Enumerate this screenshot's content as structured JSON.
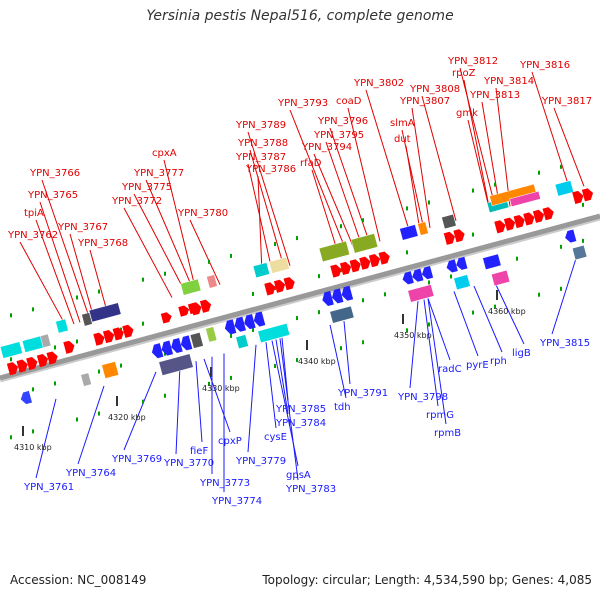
{
  "title": "Yersinia pestis Nepal516, complete genome",
  "footer": {
    "accession": "Accession: NC_008149",
    "topology": "Topology: circular; Length: 4,534,590 bp; Genes: 4,085"
  },
  "colors": {
    "forward_label": "#e00000",
    "reverse_label": "#1a1aff",
    "backbone": "#999999",
    "tick": "#00a000"
  },
  "kbp_labels": [
    "4310 kbp",
    "4320 kbp",
    "4330 kbp",
    "4340 kbp",
    "4350 kbp",
    "4360 kbp"
  ],
  "forward_labels": [
    "YPN_3762",
    "tpiA",
    "YPN_3765",
    "YPN_3766",
    "YPN_3767",
    "YPN_3768",
    "YPN_3772",
    "YPN_3775",
    "YPN_3777",
    "cpxA",
    "YPN_3780",
    "YPN_3786",
    "YPN_3787",
    "YPN_3788",
    "YPN_3789",
    "rfaD",
    "YPN_3794",
    "YPN_3795",
    "YPN_3796",
    "YPN_3793",
    "coaD",
    "dut",
    "slmA",
    "YPN_3802",
    "YPN_3807",
    "YPN_3808",
    "gmk",
    "YPN_3813",
    "rpoZ",
    "YPN_3812",
    "YPN_3814",
    "YPN_3816",
    "YPN_3817"
  ],
  "reverse_labels": [
    "YPN_3761",
    "YPN_3764",
    "YPN_3769",
    "YPN_3770",
    "fieF",
    "cpxP",
    "YPN_3773",
    "YPN_3774",
    "YPN_3779",
    "cysE",
    "gpsA",
    "YPN_3783",
    "YPN_3784",
    "YPN_3785",
    "tdh",
    "YPN_3791",
    "YPN_3798",
    "rpmG",
    "rpmB",
    "radC",
    "pyrE",
    "rph",
    "ligB",
    "YPN_3815"
  ]
}
